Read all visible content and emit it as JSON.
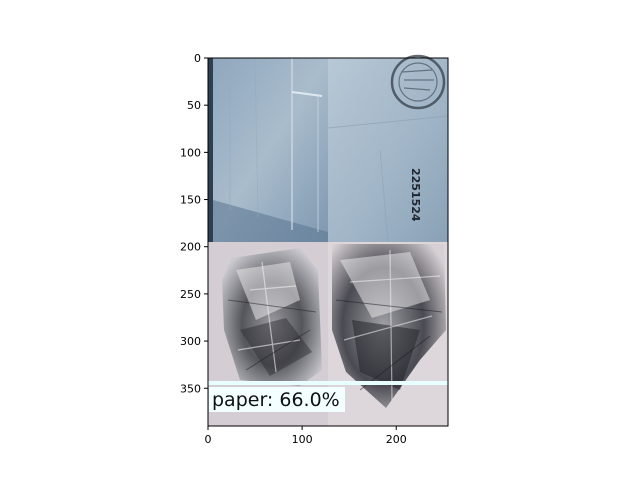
{
  "figure": {
    "type": "image-grid",
    "x_ticks": [
      0,
      100,
      200
    ],
    "y_ticks": [
      0,
      50,
      100,
      150,
      200,
      250,
      300,
      350
    ],
    "x_range": [
      0,
      255
    ],
    "y_range": [
      0,
      390
    ]
  },
  "tiles": [
    {
      "name": "cardboard-box-interior",
      "row": 0,
      "col": 0
    },
    {
      "name": "cardboard-with-printed-number",
      "row": 0,
      "col": 1
    },
    {
      "name": "crumpled-aluminum-foil-1",
      "row": 1,
      "col": 0
    },
    {
      "name": "crumpled-aluminum-foil-2",
      "row": 1,
      "col": 1
    }
  ],
  "tile_text": {
    "printed_number": "2251524"
  },
  "prediction": {
    "label": "paper: 66.0%"
  },
  "colors": {
    "cardboard_light": "#a9bccc",
    "cardboard_dark": "#6f8aa3",
    "foil_light": "#d8d8dc",
    "foil_dark": "#2b2b30",
    "label_bg": "#f3ffff",
    "highlight_line": "#e8ffff"
  }
}
